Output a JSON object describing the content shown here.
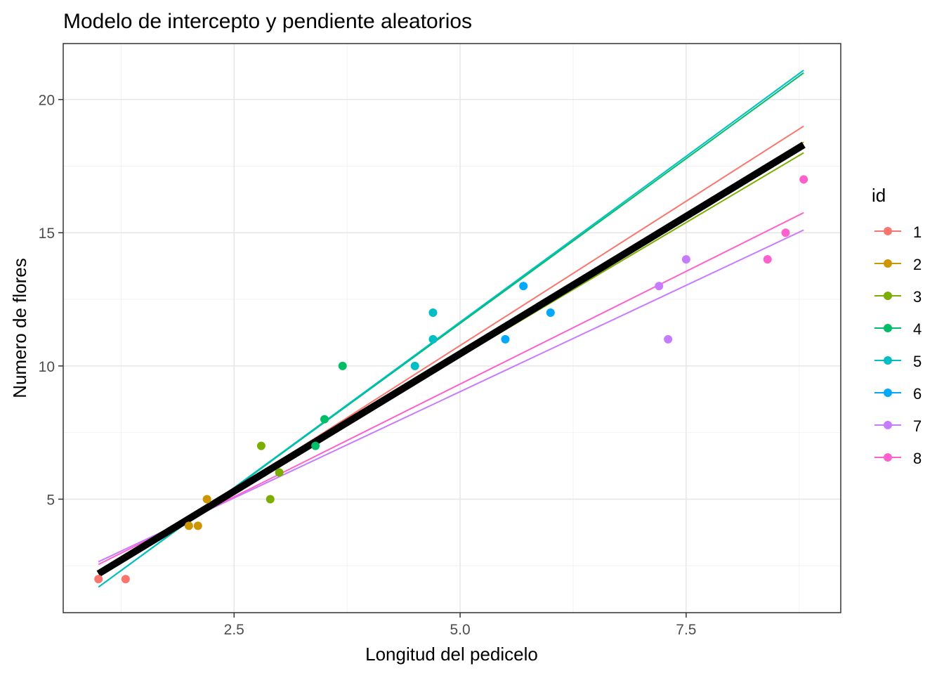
{
  "chart_data": {
    "type": "scatter",
    "title": "Modelo de intercepto y pendiente aleatorios",
    "xlabel": "Longitud del pedicelo",
    "ylabel": "Numero de flores",
    "xlim": [
      0.61,
      9.21
    ],
    "ylim": [
      0.74,
      22.1
    ],
    "x_ticks": [
      2.5,
      5.0,
      7.5
    ],
    "x_tick_labels": [
      "2.5",
      "5.0",
      "7.5"
    ],
    "y_ticks": [
      5,
      10,
      15,
      20
    ],
    "y_tick_labels": [
      "5",
      "10",
      "15",
      "20"
    ],
    "x_minor": [
      1.25,
      3.75,
      6.25,
      8.75
    ],
    "y_minor": [
      2.5,
      7.5,
      12.5,
      17.5
    ],
    "grid": true,
    "legend": {
      "title": "id",
      "placement": "right"
    },
    "fixed_line": {
      "color": "#000000",
      "x": [
        1.0,
        8.8
      ],
      "y": [
        2.2,
        18.3
      ]
    },
    "series": [
      {
        "name": "1",
        "color": "#F8766D",
        "points": [
          [
            1.0,
            2
          ],
          [
            1.3,
            2
          ]
        ],
        "line": {
          "x": [
            1.0,
            8.8
          ],
          "y": [
            2.1,
            19.0
          ]
        }
      },
      {
        "name": "2",
        "color": "#CD9600",
        "points": [
          [
            2.0,
            4
          ],
          [
            2.1,
            4
          ],
          [
            2.2,
            5
          ]
        ],
        "line": {
          "x": [
            1.0,
            8.8
          ],
          "y": [
            2.2,
            18.4
          ]
        }
      },
      {
        "name": "3",
        "color": "#7CAE00",
        "points": [
          [
            2.8,
            7
          ],
          [
            2.9,
            5
          ],
          [
            3.0,
            6
          ]
        ],
        "line": {
          "x": [
            1.0,
            8.8
          ],
          "y": [
            2.3,
            18.0
          ]
        }
      },
      {
        "name": "4",
        "color": "#00BE67",
        "points": [
          [
            3.4,
            7
          ],
          [
            3.5,
            8
          ],
          [
            3.7,
            10
          ]
        ],
        "line": {
          "x": [
            1.0,
            8.8
          ],
          "y": [
            1.7,
            21.0
          ]
        }
      },
      {
        "name": "5",
        "color": "#00BFC4",
        "points": [
          [
            4.5,
            10
          ],
          [
            4.7,
            11
          ],
          [
            4.7,
            12
          ]
        ],
        "line": {
          "x": [
            1.0,
            8.8
          ],
          "y": [
            1.7,
            21.1
          ]
        }
      },
      {
        "name": "6",
        "color": "#00A9FF",
        "points": [
          [
            5.5,
            11
          ],
          [
            5.7,
            13
          ],
          [
            6.0,
            12
          ]
        ],
        "line": {
          "x": [
            1.0,
            8.8
          ],
          "y": [
            2.2,
            18.3
          ]
        }
      },
      {
        "name": "7",
        "color": "#C77CFF",
        "points": [
          [
            7.2,
            13
          ],
          [
            7.3,
            11
          ],
          [
            7.5,
            14
          ]
        ],
        "line": {
          "x": [
            1.0,
            8.8
          ],
          "y": [
            2.65,
            15.1
          ]
        }
      },
      {
        "name": "8",
        "color": "#FF61CC",
        "points": [
          [
            8.4,
            14
          ],
          [
            8.6,
            15
          ],
          [
            8.8,
            17
          ]
        ],
        "line": {
          "x": [
            1.0,
            8.8
          ],
          "y": [
            2.55,
            15.75
          ]
        }
      }
    ]
  }
}
